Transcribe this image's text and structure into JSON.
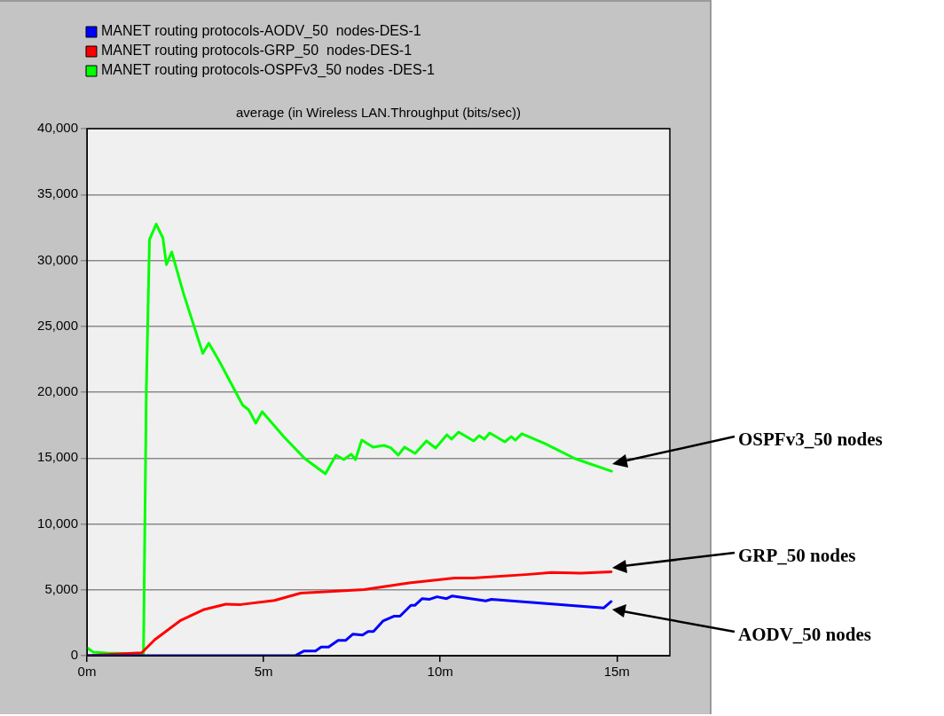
{
  "chart_data": {
    "type": "line",
    "title": "average (in Wireless LAN.Throughput (bits/sec))",
    "xlim": [
      0,
      16.5
    ],
    "xticks": [
      {
        "value": 0,
        "label": "0m"
      },
      {
        "value": 5,
        "label": "5m"
      },
      {
        "value": 10,
        "label": "10m"
      },
      {
        "value": 15,
        "label": "15m"
      }
    ],
    "ylim": [
      0,
      40000
    ],
    "yticks": [
      {
        "value": 0,
        "label": "0"
      },
      {
        "value": 5000,
        "label": "5,000"
      },
      {
        "value": 10000,
        "label": "10,000"
      },
      {
        "value": 15000,
        "label": "15,000"
      },
      {
        "value": 20000,
        "label": "20,000"
      },
      {
        "value": 25000,
        "label": "25,000"
      },
      {
        "value": 30000,
        "label": "30,000"
      },
      {
        "value": 35000,
        "label": "35,000"
      },
      {
        "value": 40000,
        "label": "40,000"
      }
    ],
    "grid": "y",
    "legend": "top left",
    "marker": "none",
    "line_style": "solid",
    "series": [
      {
        "name": "MANET routing protocols-AODV_50  nodes-DES-1",
        "color": "#0000ff",
        "x": [
          0,
          5.89,
          6.15,
          6.47,
          6.63,
          6.84,
          7.11,
          7.32,
          7.53,
          7.8,
          7.96,
          8.11,
          8.38,
          8.7,
          8.86,
          9.17,
          9.28,
          9.49,
          9.7,
          9.91,
          10.18,
          10.34,
          11.29,
          11.45,
          14.63,
          14.84
        ],
        "values": [
          0,
          0,
          360,
          360,
          650,
          650,
          1160,
          1160,
          1640,
          1560,
          1840,
          1840,
          2630,
          3000,
          3000,
          3820,
          3820,
          4330,
          4280,
          4470,
          4330,
          4530,
          4160,
          4280,
          3620,
          4110
        ]
      },
      {
        "name": "MANET routing protocols-GRP_50  nodes-DES-1",
        "color": "#ff0000",
        "x": [
          0,
          1.55,
          1.92,
          2.66,
          3.29,
          3.93,
          4.35,
          5.31,
          6.05,
          7.85,
          9.12,
          10.39,
          10.92,
          12.51,
          13.15,
          13.99,
          14.84
        ],
        "values": [
          0,
          220,
          1210,
          2690,
          3480,
          3910,
          3880,
          4190,
          4750,
          5010,
          5520,
          5890,
          5890,
          6170,
          6310,
          6260,
          6370
        ]
      },
      {
        "name": "MANET routing protocols-OSPFv3_50 nodes -DES-1",
        "color": "#00ff00",
        "x": [
          0,
          0.18,
          0.55,
          1.6,
          1.68,
          1.77,
          1.96,
          2.15,
          2.25,
          2.4,
          2.74,
          3.28,
          3.45,
          3.74,
          4.41,
          4.58,
          4.78,
          4.96,
          5.59,
          6.17,
          6.75,
          7.05,
          7.27,
          7.48,
          7.6,
          7.78,
          8.1,
          8.41,
          8.61,
          8.81,
          8.99,
          9.29,
          9.61,
          9.87,
          10.19,
          10.32,
          10.52,
          10.95,
          11.1,
          11.25,
          11.4,
          11.83,
          12.01,
          12.13,
          12.31,
          12.96,
          13.82,
          14.85
        ],
        "values": [
          600,
          270,
          200,
          130,
          20000,
          31580,
          32750,
          31700,
          29680,
          30640,
          27430,
          22940,
          23720,
          22380,
          19010,
          18650,
          17640,
          18520,
          16570,
          14950,
          13800,
          15220,
          14880,
          15290,
          14880,
          16360,
          15830,
          15960,
          15760,
          15220,
          15830,
          15350,
          16300,
          15760,
          16770,
          16430,
          16970,
          16300,
          16700,
          16430,
          16900,
          16230,
          16630,
          16360,
          16840,
          16100,
          14950,
          14000
        ]
      }
    ],
    "annotations": [
      "OSPFv3_50 nodes",
      "GRP_50 nodes",
      "AODV_50 nodes"
    ]
  }
}
